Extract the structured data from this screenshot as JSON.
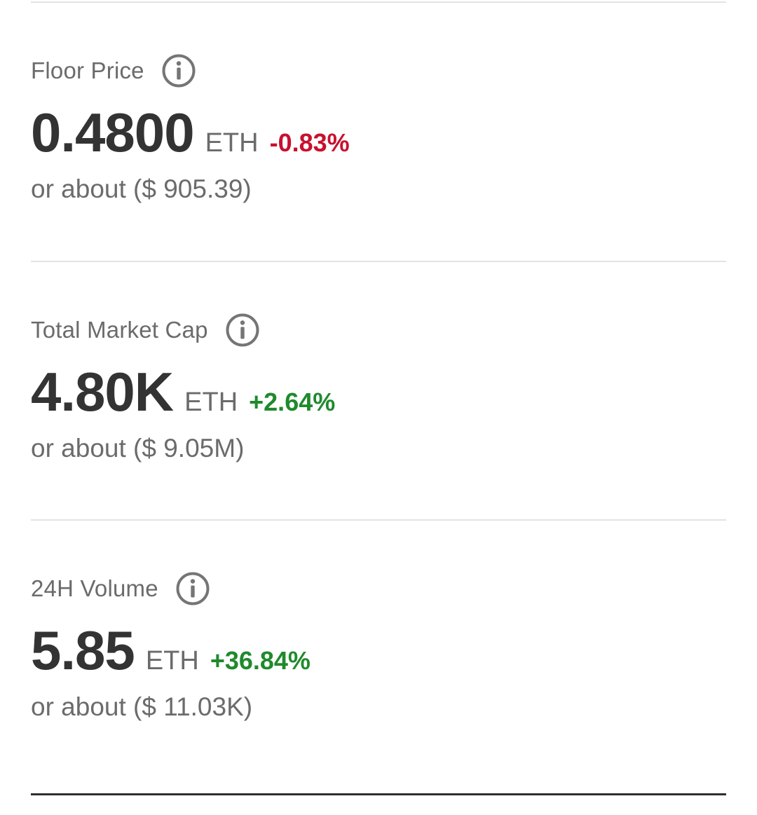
{
  "colors": {
    "negative": "#c8102e",
    "positive": "#1f8a2c",
    "muted": "#6b6b6b",
    "primary": "#333333"
  },
  "stats": [
    {
      "label": "Floor Price",
      "icon": "info-icon",
      "value": "0.4800",
      "unit": "ETH",
      "change": "-0.83%",
      "usd_prefix": "or about ($ ",
      "usd_value": "905.39",
      "usd_suffix": ")"
    },
    {
      "label": "Total Market Cap",
      "icon": "info-icon",
      "value": "4.80K",
      "unit": "ETH",
      "change": "+2.64%",
      "usd_prefix": "or about ($ ",
      "usd_value": "9.05M",
      "usd_suffix": ")"
    },
    {
      "label": "24H Volume",
      "icon": "info-icon",
      "value": "5.85",
      "unit": "ETH",
      "change": "+36.84%",
      "usd_prefix": "or about ($ ",
      "usd_value": "11.03K",
      "usd_suffix": ")"
    }
  ]
}
